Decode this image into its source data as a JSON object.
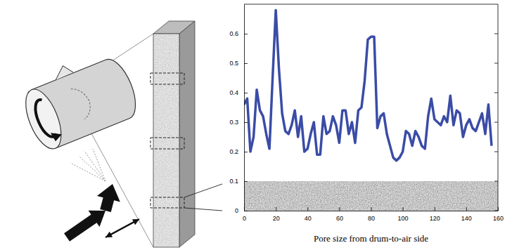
{
  "chart_data": {
    "type": "line",
    "xlabel": "Pore size from drum-to-air side",
    "x": [
      0,
      2,
      4,
      6,
      8,
      10,
      12,
      14,
      16,
      18,
      20,
      22,
      24,
      26,
      28,
      30,
      32,
      34,
      36,
      38,
      40,
      42,
      44,
      46,
      48,
      50,
      52,
      54,
      56,
      58,
      60,
      62,
      64,
      66,
      68,
      70,
      72,
      74,
      76,
      78,
      80,
      82,
      84,
      86,
      88,
      90,
      92,
      94,
      96,
      98,
      100,
      102,
      104,
      106,
      108,
      110,
      112,
      114,
      116,
      118,
      120,
      122,
      124,
      126,
      128,
      130,
      132,
      134,
      136,
      138,
      140,
      142,
      144,
      146,
      148,
      150,
      152,
      154,
      156
    ],
    "values": [
      0.36,
      0.38,
      0.2,
      0.25,
      0.41,
      0.34,
      0.32,
      0.26,
      0.21,
      0.45,
      0.68,
      0.48,
      0.33,
      0.27,
      0.26,
      0.29,
      0.34,
      0.25,
      0.32,
      0.2,
      0.21,
      0.26,
      0.3,
      0.19,
      0.19,
      0.32,
      0.26,
      0.27,
      0.32,
      0.29,
      0.23,
      0.34,
      0.34,
      0.26,
      0.3,
      0.23,
      0.34,
      0.35,
      0.44,
      0.58,
      0.59,
      0.59,
      0.28,
      0.32,
      0.33,
      0.26,
      0.22,
      0.18,
      0.17,
      0.18,
      0.2,
      0.27,
      0.26,
      0.22,
      0.27,
      0.25,
      0.22,
      0.21,
      0.32,
      0.38,
      0.31,
      0.3,
      0.29,
      0.32,
      0.3,
      0.39,
      0.29,
      0.34,
      0.33,
      0.25,
      0.29,
      0.31,
      0.28,
      0.27,
      0.3,
      0.33,
      0.26,
      0.36,
      0.22
    ],
    "color": "#3a4ca6",
    "xlim": [
      0,
      160
    ],
    "xticks": [
      0,
      20,
      40,
      60,
      80,
      100,
      120,
      140,
      160
    ],
    "ylim": [
      0,
      0.7
    ],
    "yticks": [
      0,
      0.1,
      0.2,
      0.3,
      0.4,
      0.5,
      0.6
    ]
  }
}
